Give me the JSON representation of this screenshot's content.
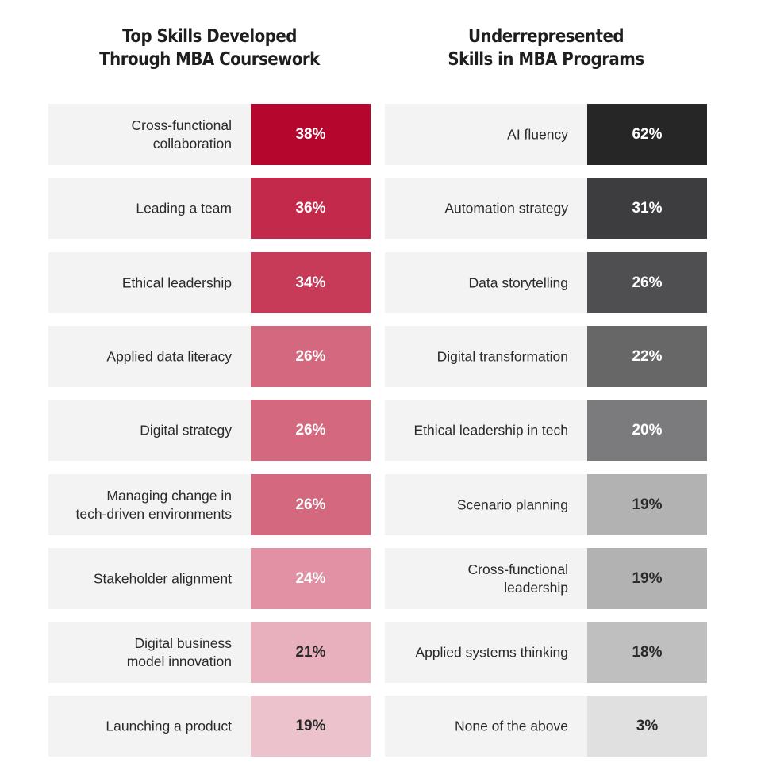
{
  "chart_data": [
    {
      "type": "table",
      "title_lines": [
        "Top Skills Developed",
        "Through MBA Coursework"
      ],
      "categories": [
        "Cross-functional collaboration",
        "Leading a team",
        "Ethical leadership",
        "Applied data literacy",
        "Digital strategy",
        "Managing change in tech-driven environments",
        "Stakeholder alignment",
        "Digital business model innovation",
        "Launching a product"
      ],
      "label_lines": [
        [
          "Cross-functional",
          "collaboration"
        ],
        [
          "Leading a team"
        ],
        [
          "Ethical leadership"
        ],
        [
          "Applied data literacy"
        ],
        [
          "Digital strategy"
        ],
        [
          "Managing change in",
          "tech-driven environments"
        ],
        [
          "Stakeholder alignment"
        ],
        [
          "Digital business",
          "model innovation"
        ],
        [
          "Launching a product"
        ]
      ],
      "values": [
        38,
        36,
        34,
        26,
        26,
        26,
        24,
        21,
        19
      ],
      "value_labels": [
        "38%",
        "36%",
        "34%",
        "26%",
        "26%",
        "26%",
        "24%",
        "21%",
        "19%"
      ],
      "cell_colors": [
        "#b5062e",
        "#c2294a",
        "#c73a58",
        "#d4687e",
        "#d4687e",
        "#d4687e",
        "#e191a3",
        "#e8afbd",
        "#ecc2cd"
      ],
      "value_text_colors": [
        "#ffffff",
        "#ffffff",
        "#ffffff",
        "#ffffff",
        "#ffffff",
        "#ffffff",
        "#ffffff",
        "#2a2a2a",
        "#2a2a2a"
      ]
    },
    {
      "type": "table",
      "title_lines": [
        "Underrepresented",
        "Skills in MBA Programs"
      ],
      "categories": [
        "AI fluency",
        "Automation strategy",
        "Data storytelling",
        "Digital transformation",
        "Ethical leadership in tech",
        "Scenario planning",
        "Cross-functional leadership",
        "Applied systems thinking",
        "None of the above"
      ],
      "label_lines": [
        [
          "AI fluency"
        ],
        [
          "Automation strategy"
        ],
        [
          "Data storytelling"
        ],
        [
          "Digital transformation"
        ],
        [
          "Ethical leadership in tech"
        ],
        [
          "Scenario planning"
        ],
        [
          "Cross-functional",
          "leadership"
        ],
        [
          "Applied systems thinking"
        ],
        [
          "None of the above"
        ]
      ],
      "values": [
        62,
        31,
        26,
        22,
        20,
        19,
        19,
        18,
        3
      ],
      "value_labels": [
        "62%",
        "31%",
        "26%",
        "22%",
        "20%",
        "19%",
        "19%",
        "18%",
        "3%"
      ],
      "cell_colors": [
        "#262626",
        "#3d3d3f",
        "#4f4f51",
        "#676767",
        "#7b7b7d",
        "#b2b2b2",
        "#b2b2b2",
        "#bfbfbf",
        "#e0e0e0"
      ],
      "value_text_colors": [
        "#ffffff",
        "#ffffff",
        "#ffffff",
        "#ffffff",
        "#ffffff",
        "#2a2a2a",
        "#2a2a2a",
        "#2a2a2a",
        "#2a2a2a"
      ]
    }
  ]
}
